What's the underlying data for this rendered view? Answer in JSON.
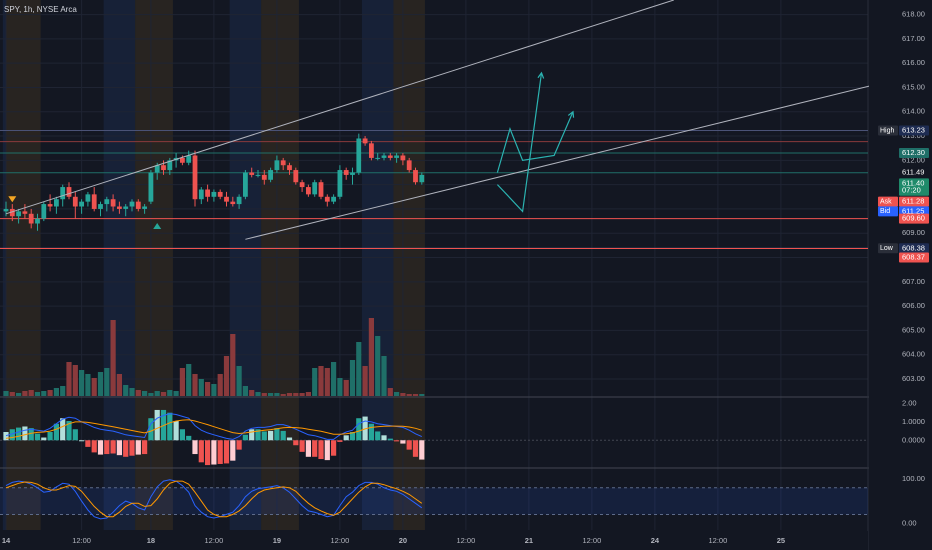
{
  "header": {
    "symbol_label": "SPY, 1h, NYSE Arca"
  },
  "colors": {
    "background": "#131722",
    "grid": "#1f2433",
    "up": "#26a69a",
    "down": "#ef5350",
    "up_volume": "#1f6f68",
    "down_volume": "#8a3a3c",
    "session_pre": "#3a3020",
    "session_post": "#1c2a48",
    "channel": "#b0b3bd",
    "projection": "#2bb3b1",
    "macd_line": "#2962ff",
    "signal_line": "#ff9800",
    "stoch_k": "#2962ff",
    "stoch_d": "#ff9800",
    "label_text": "#d1d4dc",
    "axis_text": "#b2b5be"
  },
  "chart_data": [
    {
      "type": "candlestick",
      "symbol": "SPY",
      "interval": "1h",
      "exchange": "NYSE Arca",
      "ylim": [
        602.3,
        618.6
      ],
      "y_ticks": [
        "603.00",
        "604.00",
        "605.00",
        "606.00",
        "607.00",
        "608.00",
        "609.00",
        "610.00",
        "611.00",
        "612.00",
        "613.00",
        "614.00",
        "615.00",
        "616.00",
        "617.00",
        "618.00"
      ],
      "x_labels": [
        {
          "bar": 0,
          "label": "14"
        },
        {
          "bar": 12,
          "label": "12:00"
        },
        {
          "bar": 23,
          "label": "18"
        },
        {
          "bar": 33,
          "label": "12:00"
        },
        {
          "bar": 43,
          "label": "19"
        },
        {
          "bar": 53,
          "label": "12:00"
        },
        {
          "bar": 63,
          "label": "20"
        },
        {
          "bar": 73,
          "label": "12:00"
        },
        {
          "bar": 83,
          "label": "21"
        },
        {
          "bar": 93,
          "label": "12:00"
        },
        {
          "bar": 103,
          "label": "24"
        },
        {
          "bar": 113,
          "label": "12:00"
        },
        {
          "bar": 123,
          "label": "25"
        }
      ],
      "candles": [
        {
          "o": 609.9,
          "h": 610.3,
          "l": 609.7,
          "c": 610.0
        },
        {
          "o": 610.0,
          "h": 610.2,
          "l": 609.5,
          "c": 609.7
        },
        {
          "o": 609.7,
          "h": 610.0,
          "l": 609.4,
          "c": 609.9
        },
        {
          "o": 609.9,
          "h": 610.2,
          "l": 609.6,
          "c": 609.8
        },
        {
          "o": 609.8,
          "h": 610.0,
          "l": 609.2,
          "c": 609.4
        },
        {
          "o": 609.4,
          "h": 609.8,
          "l": 609.1,
          "c": 609.6
        },
        {
          "o": 609.6,
          "h": 610.3,
          "l": 609.5,
          "c": 610.2
        },
        {
          "o": 610.2,
          "h": 610.6,
          "l": 609.9,
          "c": 610.1
        },
        {
          "o": 610.1,
          "h": 610.5,
          "l": 609.8,
          "c": 610.4
        },
        {
          "o": 610.4,
          "h": 611.0,
          "l": 610.1,
          "c": 610.9
        },
        {
          "o": 610.9,
          "h": 611.1,
          "l": 610.4,
          "c": 610.5
        },
        {
          "o": 610.5,
          "h": 610.7,
          "l": 609.6,
          "c": 610.1
        },
        {
          "o": 610.1,
          "h": 610.4,
          "l": 609.8,
          "c": 610.3
        },
        {
          "o": 610.3,
          "h": 610.7,
          "l": 610.1,
          "c": 610.6
        },
        {
          "o": 610.6,
          "h": 610.9,
          "l": 609.9,
          "c": 610.0
        },
        {
          "o": 610.0,
          "h": 610.3,
          "l": 609.7,
          "c": 610.2
        },
        {
          "o": 610.2,
          "h": 610.5,
          "l": 609.9,
          "c": 610.4
        },
        {
          "o": 610.4,
          "h": 610.6,
          "l": 609.9,
          "c": 610.1
        },
        {
          "o": 610.1,
          "h": 610.3,
          "l": 609.8,
          "c": 610.0
        },
        {
          "o": 610.0,
          "h": 610.2,
          "l": 609.7,
          "c": 610.1
        },
        {
          "o": 610.1,
          "h": 610.4,
          "l": 609.9,
          "c": 610.3
        },
        {
          "o": 610.3,
          "h": 610.4,
          "l": 609.9,
          "c": 610.0
        },
        {
          "o": 610.0,
          "h": 610.2,
          "l": 609.8,
          "c": 610.1
        },
        {
          "o": 610.3,
          "h": 611.6,
          "l": 610.2,
          "c": 611.5
        },
        {
          "o": 611.5,
          "h": 611.9,
          "l": 611.2,
          "c": 611.8
        },
        {
          "o": 611.8,
          "h": 612.0,
          "l": 611.4,
          "c": 611.6
        },
        {
          "o": 611.6,
          "h": 612.1,
          "l": 611.4,
          "c": 612.0
        },
        {
          "o": 612.0,
          "h": 612.3,
          "l": 611.7,
          "c": 612.1
        },
        {
          "o": 612.1,
          "h": 612.2,
          "l": 611.8,
          "c": 611.9
        },
        {
          "o": 611.9,
          "h": 612.4,
          "l": 611.8,
          "c": 612.2
        },
        {
          "o": 612.2,
          "h": 612.4,
          "l": 610.1,
          "c": 610.4
        },
        {
          "o": 610.4,
          "h": 610.9,
          "l": 610.2,
          "c": 610.8
        },
        {
          "o": 610.8,
          "h": 611.0,
          "l": 610.3,
          "c": 610.5
        },
        {
          "o": 610.5,
          "h": 610.8,
          "l": 610.3,
          "c": 610.7
        },
        {
          "o": 610.7,
          "h": 610.8,
          "l": 610.4,
          "c": 610.5
        },
        {
          "o": 610.5,
          "h": 610.7,
          "l": 610.1,
          "c": 610.3
        },
        {
          "o": 610.3,
          "h": 610.5,
          "l": 610.1,
          "c": 610.2
        },
        {
          "o": 610.2,
          "h": 610.6,
          "l": 610.0,
          "c": 610.5
        },
        {
          "o": 610.5,
          "h": 611.6,
          "l": 610.4,
          "c": 611.5
        },
        {
          "o": 611.5,
          "h": 611.7,
          "l": 611.3,
          "c": 611.4
        },
        {
          "o": 611.4,
          "h": 611.6,
          "l": 611.3,
          "c": 611.4
        },
        {
          "o": 611.4,
          "h": 611.6,
          "l": 611.0,
          "c": 611.2
        },
        {
          "o": 611.2,
          "h": 611.7,
          "l": 611.1,
          "c": 611.6
        },
        {
          "o": 611.6,
          "h": 612.2,
          "l": 611.5,
          "c": 612.0
        },
        {
          "o": 612.0,
          "h": 612.1,
          "l": 611.6,
          "c": 611.8
        },
        {
          "o": 611.8,
          "h": 611.9,
          "l": 611.4,
          "c": 611.6
        },
        {
          "o": 611.6,
          "h": 611.7,
          "l": 611.0,
          "c": 611.1
        },
        {
          "o": 611.1,
          "h": 611.2,
          "l": 610.7,
          "c": 610.9
        },
        {
          "o": 610.9,
          "h": 611.0,
          "l": 610.5,
          "c": 610.6
        },
        {
          "o": 610.6,
          "h": 611.2,
          "l": 610.5,
          "c": 611.1
        },
        {
          "o": 611.1,
          "h": 611.2,
          "l": 610.4,
          "c": 610.5
        },
        {
          "o": 610.5,
          "h": 610.6,
          "l": 610.1,
          "c": 610.3
        },
        {
          "o": 610.3,
          "h": 610.6,
          "l": 610.2,
          "c": 610.5
        },
        {
          "o": 610.5,
          "h": 611.8,
          "l": 610.4,
          "c": 611.6
        },
        {
          "o": 611.6,
          "h": 611.7,
          "l": 611.2,
          "c": 611.4
        },
        {
          "o": 611.4,
          "h": 611.7,
          "l": 611.0,
          "c": 611.5
        },
        {
          "o": 611.5,
          "h": 613.1,
          "l": 611.4,
          "c": 612.9
        },
        {
          "o": 612.9,
          "h": 613.0,
          "l": 612.6,
          "c": 612.7
        },
        {
          "o": 612.7,
          "h": 612.8,
          "l": 612.0,
          "c": 612.1
        },
        {
          "o": 612.1,
          "h": 612.3,
          "l": 612.0,
          "c": 612.1
        },
        {
          "o": 612.1,
          "h": 612.3,
          "l": 612.0,
          "c": 612.2
        },
        {
          "o": 612.2,
          "h": 612.3,
          "l": 612.0,
          "c": 612.1
        },
        {
          "o": 612.1,
          "h": 612.3,
          "l": 611.9,
          "c": 612.2
        },
        {
          "o": 612.2,
          "h": 612.3,
          "l": 611.8,
          "c": 612.0
        },
        {
          "o": 612.0,
          "h": 612.1,
          "l": 611.5,
          "c": 611.6
        },
        {
          "o": 611.6,
          "h": 611.7,
          "l": 611.0,
          "c": 611.1
        },
        {
          "o": 611.1,
          "h": 611.5,
          "l": 611.0,
          "c": 611.4
        }
      ],
      "volume_max": 100,
      "volume": [
        5,
        4,
        3,
        5,
        6,
        4,
        5,
        6,
        8,
        10,
        34,
        31,
        26,
        22,
        18,
        24,
        28,
        76,
        22,
        11,
        8,
        6,
        5,
        3,
        5,
        4,
        6,
        5,
        28,
        32,
        22,
        17,
        14,
        12,
        22,
        40,
        62,
        30,
        10,
        6,
        4,
        3,
        3,
        3,
        2,
        3,
        3,
        3,
        4,
        28,
        30,
        28,
        34,
        18,
        16,
        36,
        54,
        30,
        78,
        60,
        40,
        8,
        4,
        3,
        2,
        2,
        2
      ],
      "session_bands": [
        {
          "from": 0,
          "to": 0.5,
          "kind": "post"
        },
        {
          "from": 0.5,
          "to": 6,
          "kind": "pre"
        },
        {
          "from": 16,
          "to": 21,
          "kind": "post"
        },
        {
          "from": 21,
          "to": 27,
          "kind": "pre"
        },
        {
          "from": 36,
          "to": 41,
          "kind": "post"
        },
        {
          "from": 41,
          "to": 47,
          "kind": "pre"
        },
        {
          "from": 57,
          "to": 62,
          "kind": "post"
        },
        {
          "from": 62,
          "to": 67,
          "kind": "pre"
        }
      ],
      "channel_lines": [
        {
          "x1": 0,
          "y1": 609.8,
          "x2": 106,
          "y2": 618.6
        },
        {
          "x1": 38,
          "y1": 608.75,
          "x2": 144,
          "y2": 615.5
        }
      ],
      "projection_path": [
        {
          "x": 78,
          "y": 611.5
        },
        {
          "x": 80,
          "y": 613.3
        },
        {
          "x": 82,
          "y": 612.0
        },
        {
          "x": 87,
          "y": 612.2
        },
        {
          "x": 90,
          "y": 614.0
        }
      ],
      "projection_path_2": [
        {
          "x": 78,
          "y": 611.0
        },
        {
          "x": 82,
          "y": 609.9
        },
        {
          "x": 85,
          "y": 615.6
        }
      ],
      "h_lines": [
        {
          "price": 613.23,
          "color": "#4a5276"
        },
        {
          "price": 612.77,
          "color": "#8a3a3c"
        },
        {
          "price": 612.3,
          "color": "#1f6f68"
        },
        {
          "price": 611.49,
          "color": "#1f6f68"
        },
        {
          "price": 609.6,
          "color": "#ef5350"
        },
        {
          "price": 608.38,
          "color": "#4a5276"
        },
        {
          "price": 608.37,
          "color": "#ef5350"
        }
      ],
      "markers": [
        {
          "bar": 1,
          "price": 610.4,
          "shape": "down-triangle",
          "color": "#f5a623"
        },
        {
          "bar": 24,
          "price": 609.3,
          "shape": "up-triangle",
          "color": "#26a69a"
        }
      ],
      "price_labels": [
        {
          "price": 613.23,
          "tag": "High",
          "value": "613.23",
          "tag_bg": "#2a2e39",
          "bg": "#1e2c52"
        },
        {
          "price": 612.3,
          "tag": "",
          "value": "612.30",
          "tag_bg": "",
          "bg": "#1f6f68"
        },
        {
          "price": 611.49,
          "tag": "",
          "value": "611.49",
          "tag_bg": "",
          "bg": "#131722"
        },
        {
          "price": 611.05,
          "tag": "",
          "value": "611.40",
          "tag_bg": "",
          "bg": "#1f8a6a"
        },
        {
          "price": 610.75,
          "tag": "",
          "value": "07:20",
          "tag_bg": "",
          "bg": "#1f8a6a"
        },
        {
          "price": 610.3,
          "tag": "Ask",
          "value": "611.28",
          "tag_bg": "#ef5350",
          "bg": "#ef5350"
        },
        {
          "price": 609.9,
          "tag": "Bid",
          "value": "611.25",
          "tag_bg": "#2962ff",
          "bg": "#2962ff"
        },
        {
          "price": 609.6,
          "tag": "",
          "value": "609.60",
          "tag_bg": "",
          "bg": "#ef5350"
        },
        {
          "price": 608.38,
          "tag": "Low",
          "value": "608.38",
          "tag_bg": "#2a2e39",
          "bg": "#1e2c52"
        },
        {
          "price": 608.0,
          "tag": "",
          "value": "608.37",
          "tag_bg": "",
          "bg": "#ef5350"
        }
      ]
    },
    {
      "type": "line",
      "indicator": "macd",
      "ylim": [
        -1.4,
        2.3
      ],
      "y_ticks": [
        "2.00",
        "1.0000",
        "0.0000"
      ],
      "macd": [
        0.25,
        0.35,
        0.45,
        0.55,
        0.6,
        0.55,
        0.5,
        0.65,
        0.9,
        1.15,
        1.25,
        1.2,
        1.0,
        0.85,
        0.7,
        0.6,
        0.55,
        0.5,
        0.4,
        0.3,
        0.25,
        0.2,
        0.15,
        0.9,
        1.2,
        1.35,
        1.45,
        1.4,
        1.3,
        1.2,
        0.8,
        0.55,
        0.4,
        0.3,
        0.2,
        0.1,
        0.05,
        0.2,
        0.5,
        0.65,
        0.7,
        0.7,
        0.75,
        0.85,
        0.85,
        0.75,
        0.6,
        0.45,
        0.3,
        0.25,
        0.15,
        0.05,
        0.05,
        0.3,
        0.45,
        0.55,
        0.9,
        1.05,
        1.0,
        0.9,
        0.85,
        0.8,
        0.75,
        0.7,
        0.55,
        0.35,
        0.2
      ],
      "signal": [
        0.1,
        0.15,
        0.22,
        0.3,
        0.38,
        0.43,
        0.45,
        0.5,
        0.6,
        0.75,
        0.9,
        1.0,
        1.0,
        0.97,
        0.92,
        0.86,
        0.8,
        0.74,
        0.67,
        0.6,
        0.53,
        0.46,
        0.4,
        0.5,
        0.65,
        0.8,
        0.95,
        1.05,
        1.1,
        1.12,
        1.05,
        0.95,
        0.85,
        0.74,
        0.63,
        0.52,
        0.42,
        0.37,
        0.4,
        0.45,
        0.5,
        0.54,
        0.58,
        0.63,
        0.68,
        0.7,
        0.69,
        0.66,
        0.6,
        0.55,
        0.49,
        0.41,
        0.33,
        0.33,
        0.36,
        0.4,
        0.5,
        0.62,
        0.7,
        0.74,
        0.76,
        0.77,
        0.77,
        0.76,
        0.72,
        0.65,
        0.55
      ]
    },
    {
      "type": "line",
      "indicator": "stochastic",
      "ylim": [
        -15,
        120
      ],
      "y_ticks": [
        "100.00",
        "0.00"
      ],
      "band": [
        20,
        80
      ],
      "k": [
        85,
        92,
        95,
        93,
        88,
        80,
        70,
        72,
        82,
        90,
        88,
        72,
        50,
        30,
        15,
        10,
        12,
        25,
        40,
        50,
        45,
        35,
        30,
        60,
        82,
        95,
        98,
        95,
        85,
        70,
        40,
        25,
        15,
        12,
        15,
        20,
        25,
        40,
        60,
        72,
        78,
        80,
        82,
        85,
        80,
        70,
        55,
        40,
        28,
        25,
        20,
        15,
        18,
        40,
        60,
        70,
        85,
        92,
        92,
        88,
        80,
        75,
        72,
        65,
        55,
        45,
        35
      ],
      "d": [
        80,
        85,
        90,
        93,
        92,
        88,
        80,
        75,
        75,
        80,
        85,
        83,
        72,
        55,
        38,
        25,
        15,
        15,
        25,
        38,
        45,
        45,
        38,
        40,
        55,
        75,
        90,
        95,
        95,
        88,
        70,
        50,
        30,
        20,
        15,
        15,
        20,
        28,
        40,
        55,
        68,
        75,
        78,
        80,
        82,
        80,
        72,
        58,
        45,
        35,
        28,
        22,
        18,
        25,
        40,
        55,
        70,
        82,
        90,
        90,
        87,
        82,
        78,
        72,
        65,
        55,
        45
      ]
    }
  ]
}
